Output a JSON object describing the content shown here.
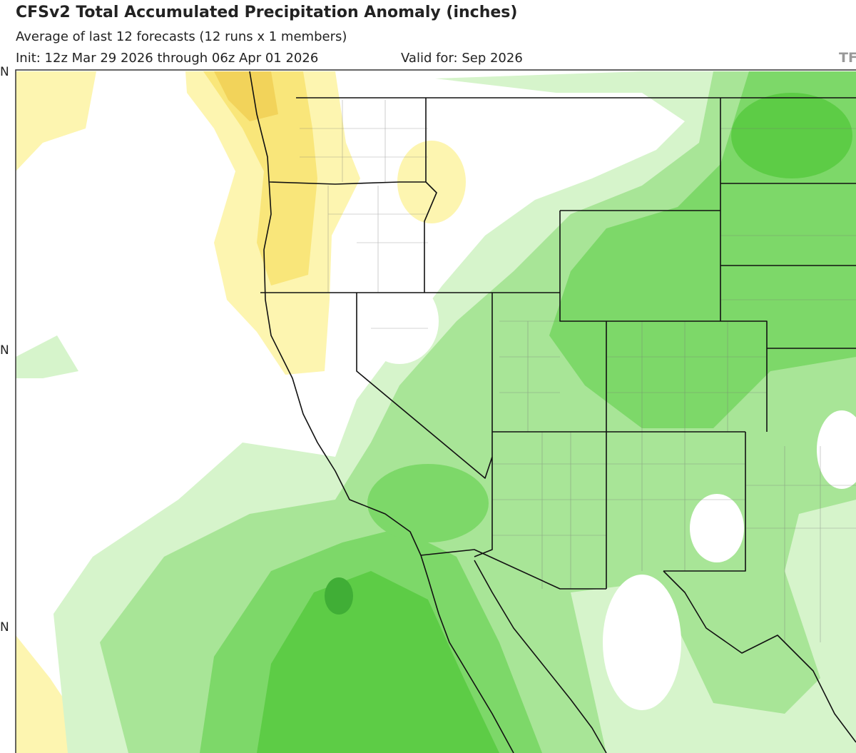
{
  "header": {
    "title": "CFSv2 Total Accumulated Precipitation Anomaly (inches)",
    "subtitle": "Average of last 12 forecasts (12 runs x 1 members)",
    "init": "Init: 12z Mar 29 2026 through 06z Apr 01 2026",
    "valid": "Valid for: Sep 2026",
    "logo": "TF"
  },
  "map": {
    "lat_labels": [
      "N",
      "N",
      "N"
    ]
  }
}
